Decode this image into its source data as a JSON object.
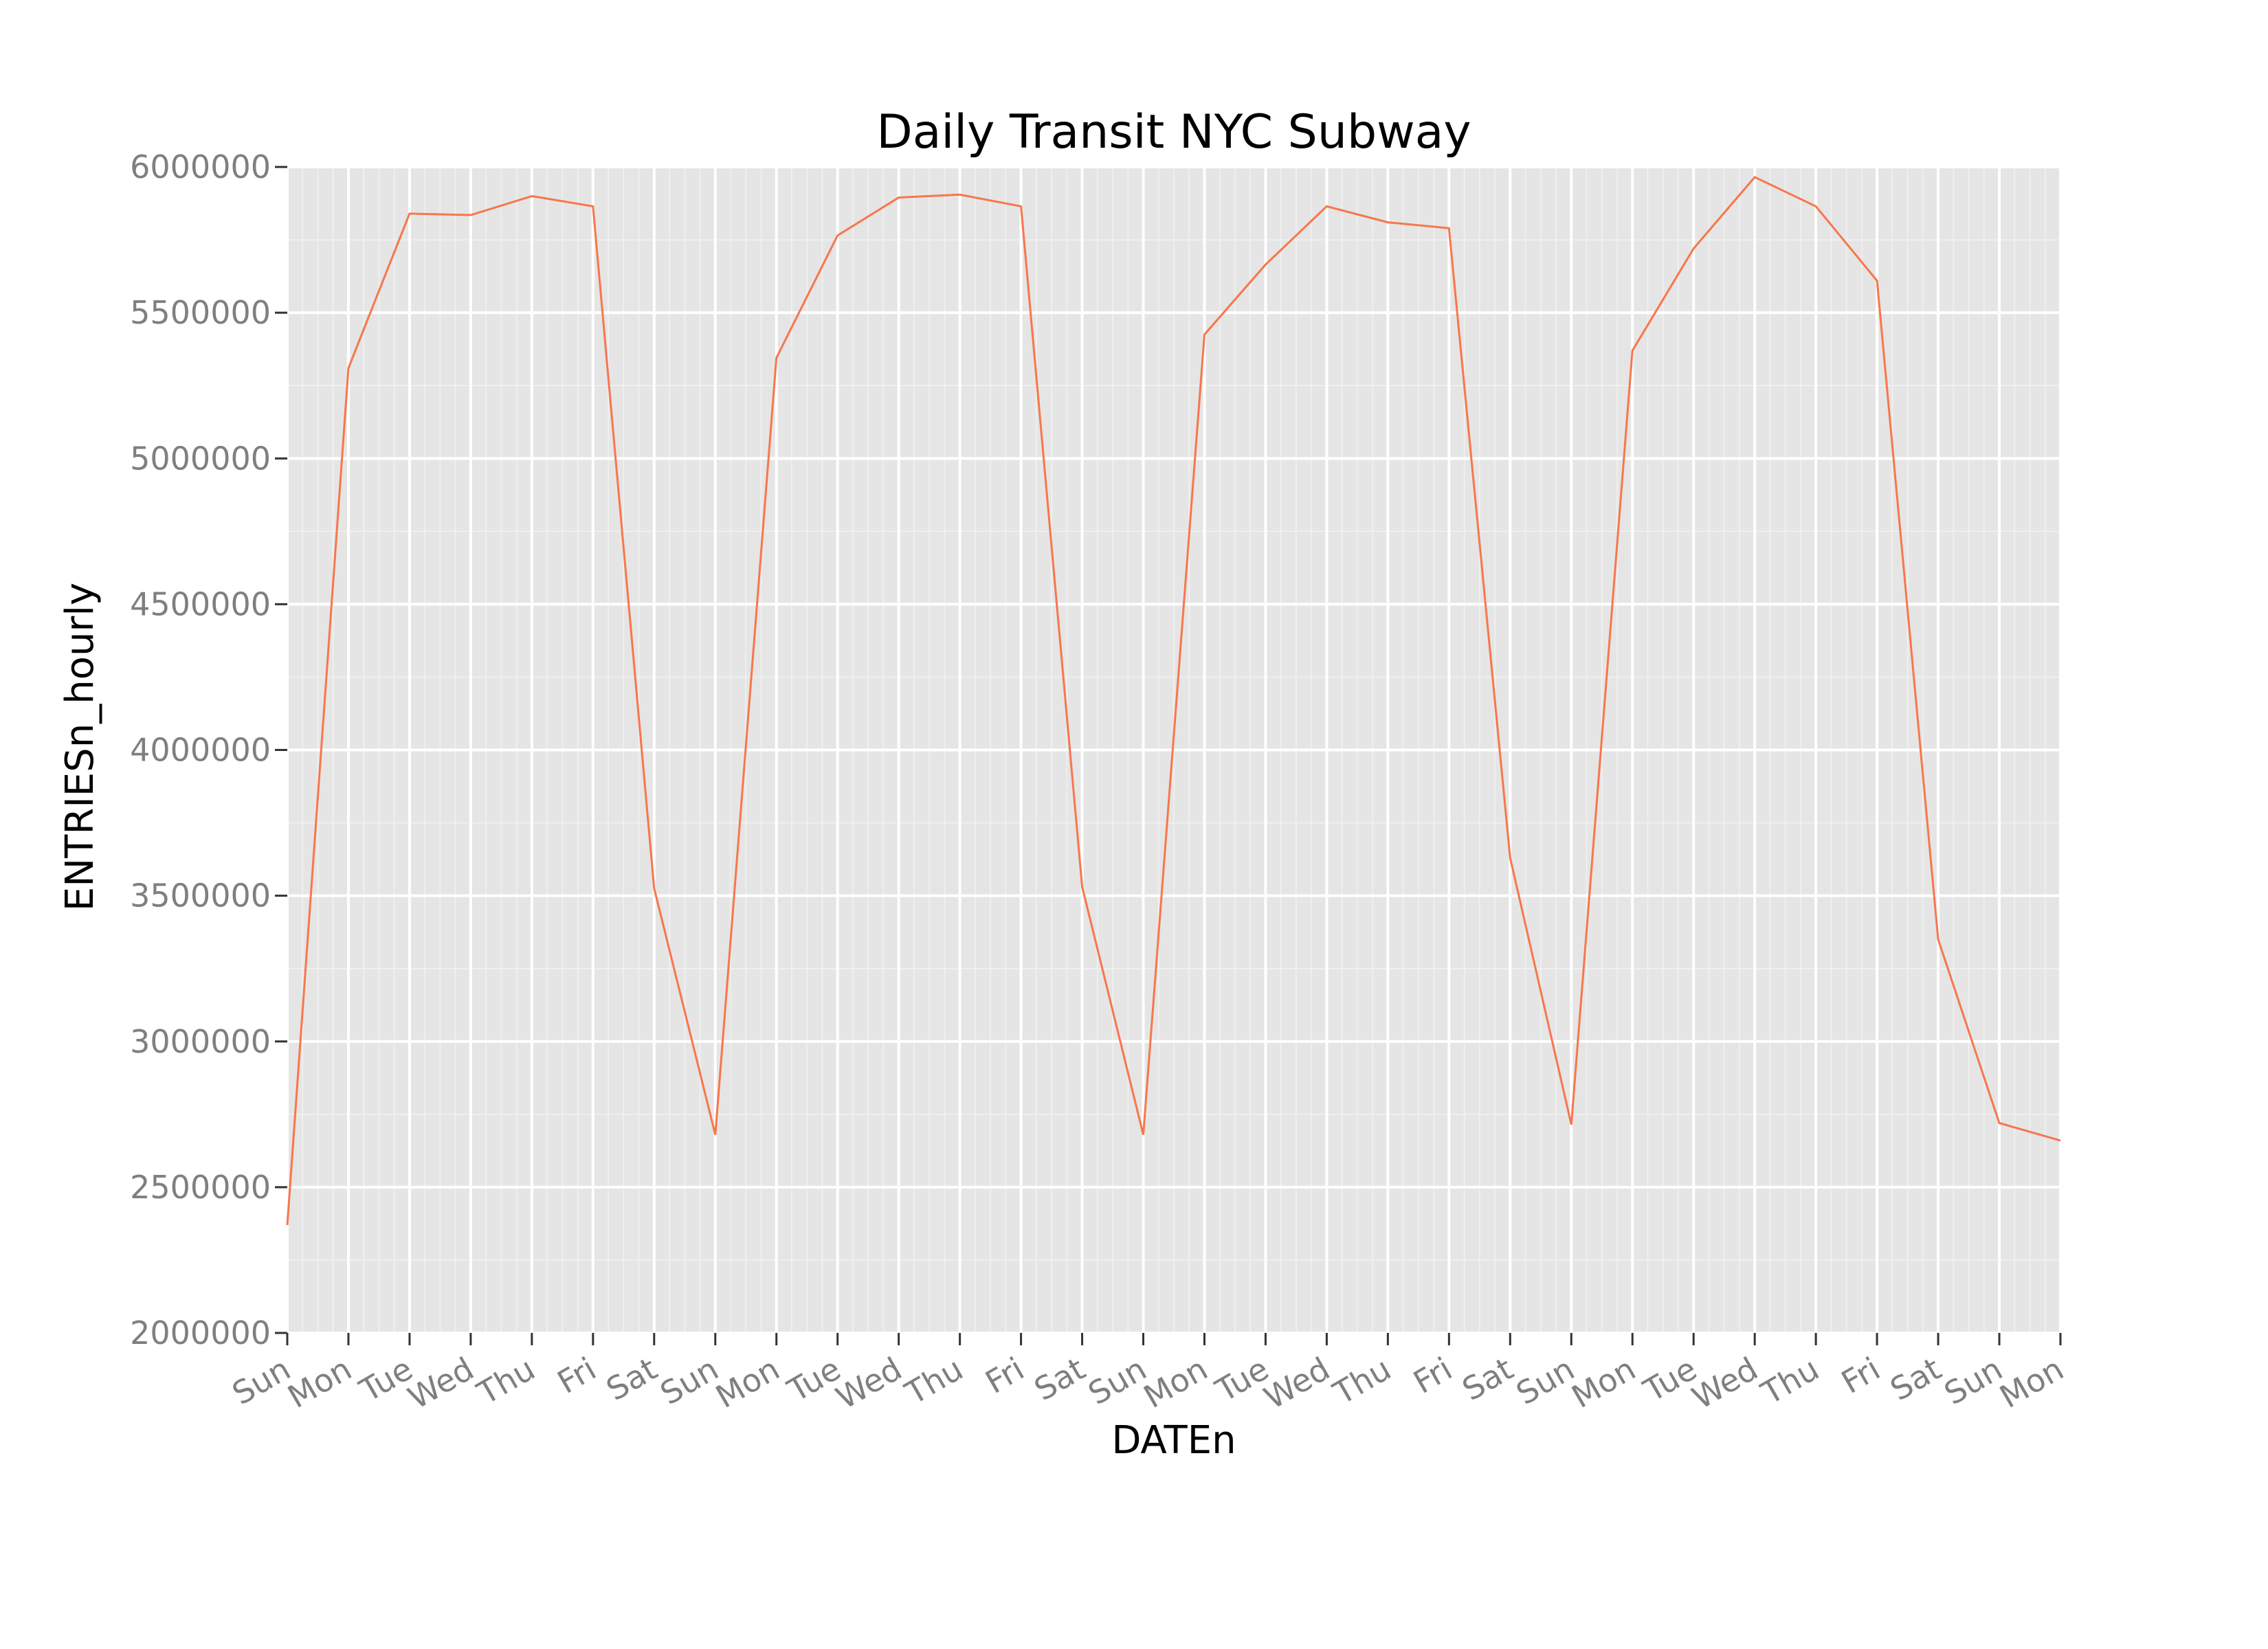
{
  "chart_data": {
    "type": "line",
    "title": "Daily Transit NYC Subway",
    "xlabel": "DATEn",
    "ylabel": "ENTRIESn_hourly",
    "ylim": [
      2000000,
      6000000
    ],
    "yticks": [
      2000000,
      2500000,
      3000000,
      3500000,
      4000000,
      4500000,
      5000000,
      5500000,
      6000000
    ],
    "ytick_labels": [
      "2000000",
      "2500000",
      "3000000",
      "3500000",
      "4000000",
      "4500000",
      "5000000",
      "5500000",
      "6000000"
    ],
    "categories": [
      "Sun",
      "Mon",
      "Tue",
      "Wed",
      "Thu",
      "Fri",
      "Sat",
      "Sun",
      "Mon",
      "Tue",
      "Wed",
      "Thu",
      "Fri",
      "Sat",
      "Sun",
      "Mon",
      "Tue",
      "Wed",
      "Thu",
      "Fri",
      "Sat",
      "Sun",
      "Mon",
      "Tue",
      "Wed",
      "Thu",
      "Fri",
      "Sat",
      "Sun",
      "Mon"
    ],
    "values": [
      2370000,
      5310000,
      5840000,
      5835000,
      5900000,
      5865000,
      3525000,
      2680000,
      5345000,
      5765000,
      5895000,
      5905000,
      5865000,
      3530000,
      2680000,
      5425000,
      5665000,
      5865000,
      5810000,
      5790000,
      3630000,
      2715000,
      5370000,
      5720000,
      5965000,
      5865000,
      5610000,
      3350000,
      2720000,
      2660000
    ],
    "line_color": "#f8764b",
    "panel_background": "#e5e5e5",
    "grid": true
  }
}
